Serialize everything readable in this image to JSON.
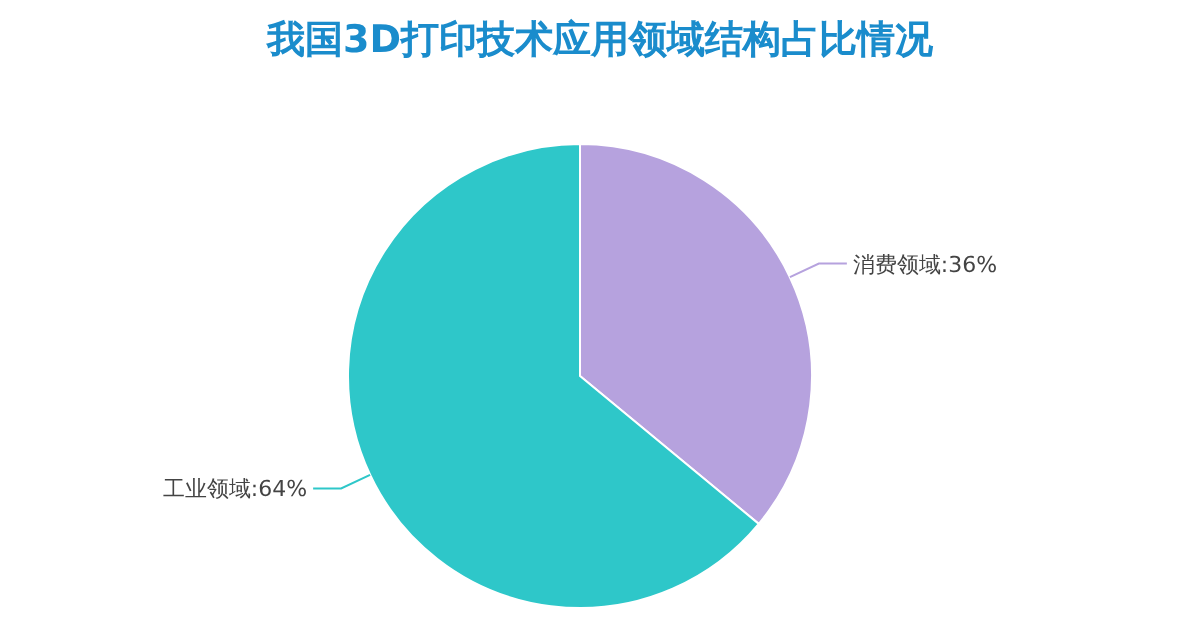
{
  "chart_data": {
    "type": "pie",
    "title": "我国3D打印技术应用领域结构占比情况",
    "categories": [
      "消费领域:36%",
      "工业领域:64%"
    ],
    "values": [
      36,
      64
    ],
    "colors": [
      "#b6a2de",
      "#2ec7c9"
    ]
  }
}
